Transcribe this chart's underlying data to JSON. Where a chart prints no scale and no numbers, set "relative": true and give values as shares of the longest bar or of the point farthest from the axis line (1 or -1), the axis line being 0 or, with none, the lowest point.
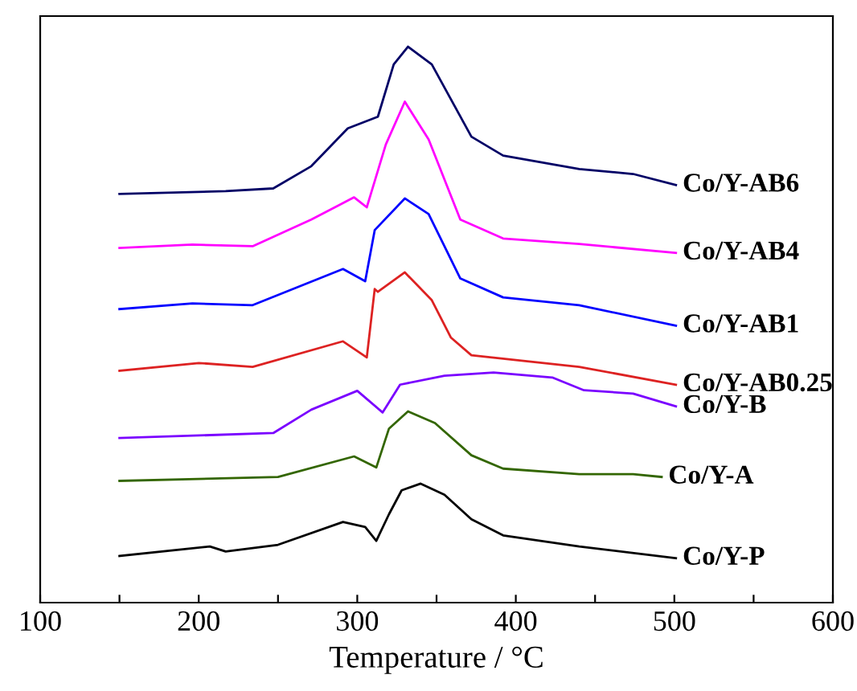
{
  "chart_data": {
    "type": "line",
    "relative": true,
    "xlabel": "Temperature / °C",
    "xlim": [
      100,
      600
    ],
    "xticks": [
      100,
      {
        "value": 150,
        "label": null
      },
      200,
      {
        "value": 250,
        "label": null
      },
      300,
      {
        "value": 350,
        "label": null
      },
      400,
      {
        "value": 450,
        "label": null
      },
      500,
      {
        "value": 550,
        "label": null
      },
      600
    ],
    "tick_labels": "x",
    "grid": false,
    "legend": false,
    "marker": "none",
    "line_style": "solid",
    "series": [
      {
        "name": "Co/Y-AB6",
        "color": "#000066",
        "x": [
          150,
          217,
          247,
          271,
          294,
          313,
          323,
          332,
          347,
          372,
          392,
          440,
          474,
          501
        ],
        "values": [
          0.735,
          0.74,
          0.745,
          0.785,
          0.853,
          0.874,
          0.968,
          1.0,
          0.968,
          0.838,
          0.804,
          0.78,
          0.771,
          0.751
        ]
      },
      {
        "name": "Co/Y-AB4",
        "color": "#ff00ff",
        "x": [
          150,
          196,
          234,
          271,
          298,
          306,
          318,
          330,
          345,
          365,
          392,
          440,
          501
        ],
        "values": [
          0.638,
          0.644,
          0.641,
          0.689,
          0.729,
          0.711,
          0.824,
          0.901,
          0.833,
          0.689,
          0.655,
          0.645,
          0.629
        ]
      },
      {
        "name": "Co/Y-AB1",
        "color": "#0000ff",
        "x": [
          150,
          196,
          234,
          291,
          305,
          311,
          330,
          345,
          365,
          392,
          440,
          501
        ],
        "values": [
          0.528,
          0.538,
          0.535,
          0.6,
          0.578,
          0.67,
          0.727,
          0.699,
          0.583,
          0.549,
          0.535,
          0.498
        ]
      },
      {
        "name": "Co/Y-AB0.25",
        "color": "#dd2222",
        "x": [
          150,
          200,
          234,
          291,
          306,
          311,
          313,
          330,
          347,
          359,
          372,
          440,
          501
        ],
        "values": [
          0.417,
          0.431,
          0.424,
          0.47,
          0.441,
          0.564,
          0.559,
          0.594,
          0.544,
          0.477,
          0.445,
          0.424,
          0.392
        ]
      },
      {
        "name": "Co/Y-B",
        "color": "#7a00ff",
        "x": [
          150,
          247,
          271,
          300,
          316,
          327,
          355,
          386,
          423,
          443,
          474,
          501
        ],
        "values": [
          0.296,
          0.305,
          0.347,
          0.381,
          0.342,
          0.392,
          0.408,
          0.414,
          0.405,
          0.382,
          0.376,
          0.353
        ]
      },
      {
        "name": "Co/Y-A",
        "color": "#336600",
        "x": [
          150,
          250,
          298,
          312,
          320,
          332,
          349,
          372,
          392,
          440,
          474,
          492
        ],
        "values": [
          0.219,
          0.226,
          0.263,
          0.243,
          0.313,
          0.344,
          0.323,
          0.265,
          0.241,
          0.231,
          0.231,
          0.226
        ]
      },
      {
        "name": "Co/Y-P",
        "color": "#000000",
        "x": [
          150,
          207,
          217,
          250,
          291,
          305,
          312,
          320,
          328,
          340,
          355,
          372,
          392,
          440,
          501
        ],
        "values": [
          0.084,
          0.101,
          0.092,
          0.104,
          0.145,
          0.136,
          0.111,
          0.159,
          0.202,
          0.214,
          0.194,
          0.15,
          0.121,
          0.101,
          0.08
        ]
      }
    ]
  }
}
